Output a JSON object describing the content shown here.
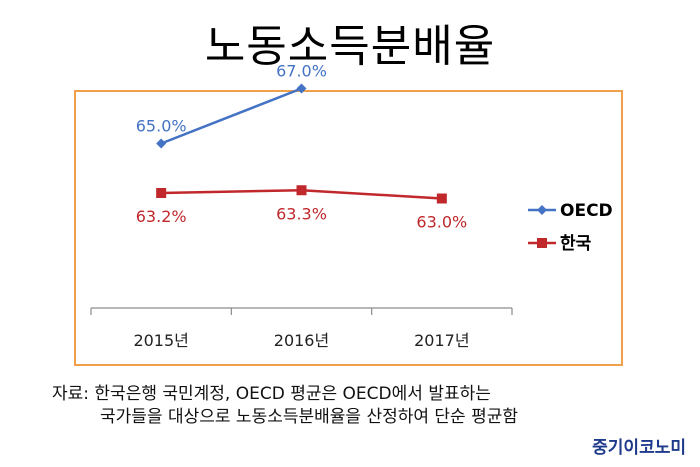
{
  "title": "노동소득분배율",
  "chart_data": {
    "type": "line",
    "categories": [
      "2015년",
      "2016년",
      "2017년"
    ],
    "series": [
      {
        "name": "OECD",
        "values": [
          65.0,
          67.0,
          null
        ],
        "labels": [
          "65.0%",
          "67.0%",
          null
        ],
        "color": "#4472c4",
        "marker": "diamond"
      },
      {
        "name": "한국",
        "values": [
          63.2,
          63.3,
          63.0
        ],
        "labels": [
          "63.2%",
          "63.3%",
          "63.0%"
        ],
        "color": "#c0282c",
        "marker": "square"
      }
    ],
    "legend_position": "right",
    "grid": false
  },
  "source": {
    "line1": "자료: 한국은행 국민계정, OECD 평균은 OECD에서 발표하는",
    "line2": "국가들을 대상으로 노동소득분배율을 산정하여 단순 평균함"
  },
  "brand": "중기이코노미"
}
